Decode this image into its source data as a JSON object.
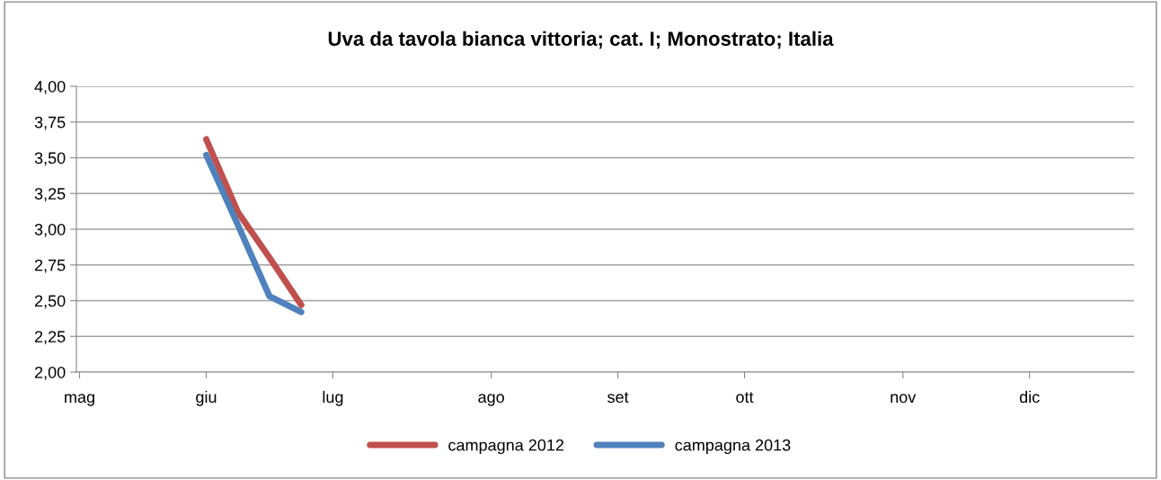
{
  "chart_data": {
    "type": "line",
    "title": "Uva da tavola bianca vittoria; cat. I; Monostrato; Italia",
    "categories": [
      "mag",
      null,
      null,
      null,
      "giu",
      null,
      null,
      null,
      "lug",
      null,
      null,
      null,
      null,
      "ago",
      null,
      null,
      null,
      "set",
      null,
      null,
      null,
      "ott",
      null,
      null,
      null,
      null,
      "nov",
      null,
      null,
      null,
      "dic",
      null,
      null,
      null
    ],
    "series": [
      {
        "name": "campagna 2012",
        "color": "#c0504d",
        "values": [
          null,
          null,
          null,
          null,
          3.63,
          3.12,
          2.8,
          2.47,
          null,
          null,
          null,
          null,
          null,
          null,
          null,
          null,
          null,
          null,
          null,
          null,
          null,
          null,
          null,
          null,
          null,
          null,
          null,
          null,
          null,
          null,
          null,
          null,
          null,
          null
        ]
      },
      {
        "name": "campagna 2013",
        "color": "#4f81bd",
        "values": [
          null,
          null,
          null,
          null,
          3.52,
          3.03,
          2.53,
          2.42,
          null,
          null,
          null,
          null,
          null,
          null,
          null,
          null,
          null,
          null,
          null,
          null,
          null,
          null,
          null,
          null,
          null,
          null,
          null,
          null,
          null,
          null,
          null,
          null,
          null,
          null
        ]
      }
    ],
    "ylim": [
      2.0,
      4.0
    ],
    "yticks": [
      {
        "value": 2.0,
        "label": "2,00"
      },
      {
        "value": 2.25,
        "label": "2,25"
      },
      {
        "value": 2.5,
        "label": "2,50"
      },
      {
        "value": 2.75,
        "label": "2,75"
      },
      {
        "value": 3.0,
        "label": "3,00"
      },
      {
        "value": 3.25,
        "label": "3,25"
      },
      {
        "value": 3.5,
        "label": "3,50"
      },
      {
        "value": 3.75,
        "label": "3,75"
      },
      {
        "value": 4.0,
        "label": "4,00"
      }
    ],
    "grid": "y",
    "legend": "bottom",
    "marker": "none",
    "line_style": "solid"
  }
}
